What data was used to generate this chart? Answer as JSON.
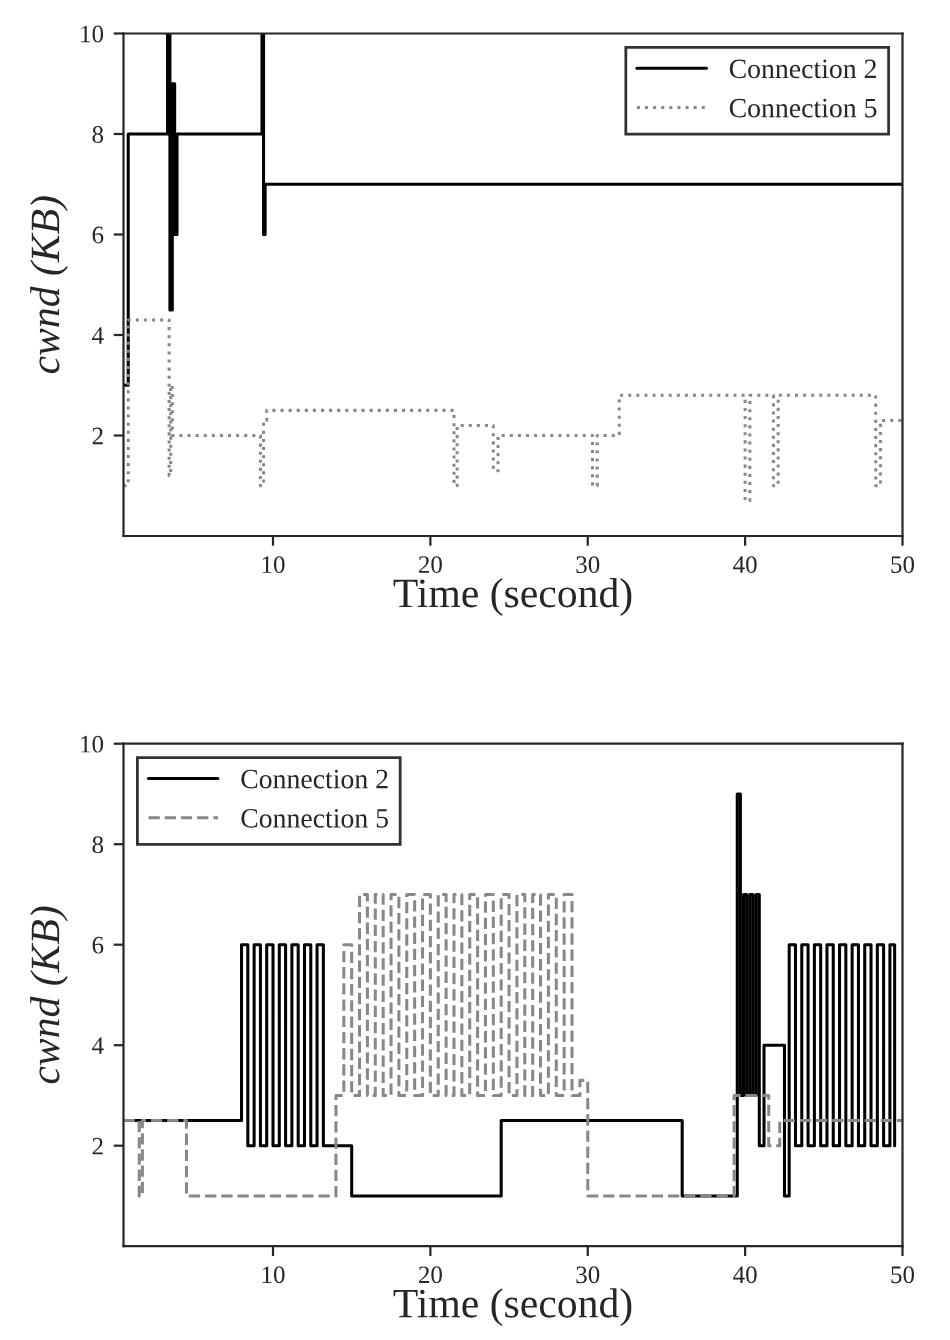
{
  "chart_data": [
    {
      "type": "step",
      "xlabel": "Time (second)",
      "ylabel": "cwnd (KB)",
      "xlim": [
        0.5,
        50
      ],
      "ylim": [
        0,
        10
      ],
      "xticks": [
        10,
        20,
        30,
        40,
        50
      ],
      "yticks": [
        2,
        4,
        6,
        8,
        10
      ],
      "grid": false,
      "legend": "top right",
      "series": [
        {
          "name": "Connection 2",
          "color": "#000000",
          "line_style": "solid",
          "x": [
            0.5,
            0.8,
            3.3,
            3.45,
            3.6,
            3.75,
            3.9,
            9.3,
            9.4,
            9.5,
            50
          ],
          "values": [
            3,
            8,
            10,
            4.5,
            9,
            6,
            8,
            10,
            6,
            7,
            7
          ]
        },
        {
          "name": "Connection 5",
          "color": "#888888",
          "line_style": "dotted",
          "x": [
            0.5,
            0.8,
            3.4,
            3.5,
            3.6,
            9.2,
            9.4,
            9.6,
            21.5,
            21.7,
            24,
            24.3,
            30.3,
            30.6,
            32,
            40,
            40.3,
            41.8,
            42.1,
            48.3,
            48.6,
            50
          ],
          "values": [
            1,
            4.3,
            1.2,
            3,
            2,
            1,
            2.3,
            2.5,
            1,
            2.2,
            1.3,
            2,
            1,
            2,
            2.8,
            0.7,
            2.8,
            1,
            2.8,
            1,
            2.3,
            2.3
          ]
        }
      ]
    },
    {
      "type": "step",
      "xlabel": "Time (second)",
      "ylabel": "cwnd (KB)",
      "xlim": [
        0.5,
        50
      ],
      "ylim": [
        0,
        10
      ],
      "xticks": [
        10,
        20,
        30,
        40,
        50
      ],
      "yticks": [
        2,
        4,
        6,
        8,
        10
      ],
      "grid": false,
      "legend": "top left",
      "series": [
        {
          "name": "Connection 2",
          "color": "#000000",
          "line_style": "solid",
          "x": [
            0.5,
            8,
            8.4,
            8.8,
            9.2,
            9.6,
            10,
            10.4,
            10.8,
            11.2,
            11.6,
            12,
            12.4,
            12.8,
            13.2,
            15,
            24.5,
            36,
            39.5,
            39.7,
            39.9,
            40.1,
            40.3,
            40.5,
            40.7,
            40.9,
            41.2,
            42.5,
            42.8,
            43.2,
            43.6,
            44,
            44.4,
            44.8,
            45.2,
            45.6,
            46,
            46.4,
            46.8,
            47.2,
            47.6,
            48,
            48.4,
            48.8,
            49.2,
            49.5
          ],
          "values": [
            2.5,
            6,
            2,
            6,
            2,
            6,
            2,
            6,
            2,
            6,
            2,
            6,
            2,
            6,
            2,
            1,
            2.5,
            1,
            9,
            3,
            7,
            3,
            7,
            3,
            7,
            2,
            4,
            1,
            6,
            2,
            6,
            2,
            6,
            2,
            6,
            2,
            6,
            2,
            6,
            2,
            6,
            2,
            6,
            2,
            6,
            2
          ]
        },
        {
          "name": "Connection 5",
          "color": "#888888",
          "line_style": "dashed",
          "x": [
            0.5,
            1.5,
            1.7,
            4.5,
            14,
            14.5,
            15,
            15.5,
            16,
            16.5,
            17,
            17.5,
            18,
            18.5,
            19,
            19.5,
            20,
            20.5,
            21,
            21.5,
            22,
            22.5,
            23,
            23.5,
            24,
            24.5,
            25,
            25.5,
            26,
            26.5,
            27,
            27.5,
            28,
            28.5,
            29,
            29.5,
            30,
            39.3,
            41.5,
            42.2,
            50
          ],
          "values": [
            2.5,
            1,
            2.5,
            1,
            3,
            6,
            3,
            7,
            3,
            7,
            3,
            7,
            3,
            7,
            3,
            7,
            3,
            7,
            3,
            7,
            3,
            7,
            3,
            7,
            3,
            7,
            3,
            7,
            3,
            7,
            3,
            7,
            3,
            7,
            3,
            3.3,
            1,
            3,
            2,
            2.5,
            2.5
          ]
        }
      ]
    }
  ]
}
